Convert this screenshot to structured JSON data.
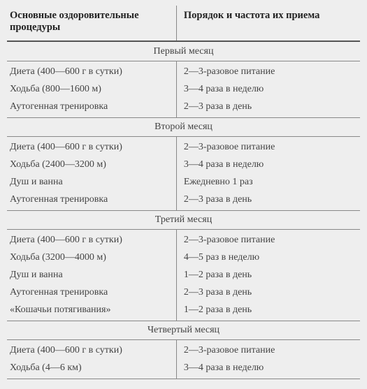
{
  "header": {
    "col1": "Основные оздоровительные процедуры",
    "col2": "Порядок и частота их приема"
  },
  "sections": [
    {
      "title": "Первый месяц",
      "rows": [
        {
          "c1": "Диета (400—600 г в сутки)",
          "c2": "2—3-разовое питание"
        },
        {
          "c1": "Ходьба (800—1600 м)",
          "c2": "3—4 раза в неделю"
        },
        {
          "c1": "Аутогенная тренировка",
          "c2": "2—3 раза в день"
        }
      ]
    },
    {
      "title": "Второй месяц",
      "rows": [
        {
          "c1": "Диета (400—600 г в сутки)",
          "c2": "2—3-разовое питание"
        },
        {
          "c1": "Ходьба (2400—3200 м)",
          "c2": "3—4 раза в неделю"
        },
        {
          "c1": "Душ и ванна",
          "c2": "Ежедневно 1 раз"
        },
        {
          "c1": "Аутогенная тренировка",
          "c2": "2—3 раза в день"
        }
      ]
    },
    {
      "title": "Третий месяц",
      "rows": [
        {
          "c1": "Диета (400—600 г в сутки)",
          "c2": "2—3-разовое питание"
        },
        {
          "c1": "Ходьба (3200—4000 м)",
          "c2": "4—5 раз в неделю"
        },
        {
          "c1": "Душ и ванна",
          "c2": "1—2 раза в день"
        },
        {
          "c1": "Аутогенная тренировка",
          "c2": "2—3 раза в день"
        },
        {
          "c1": "«Кошачьи потягивания»",
          "c2": "1—2 раза в день"
        }
      ]
    },
    {
      "title": "Четвертый месяц",
      "rows": [
        {
          "c1": "Диета (400—600 г в сутки)",
          "c2": "2—3-разовое питание"
        },
        {
          "c1": "Ходьба (4—6 км)",
          "c2": "3—4 раза в неделю"
        }
      ]
    }
  ]
}
